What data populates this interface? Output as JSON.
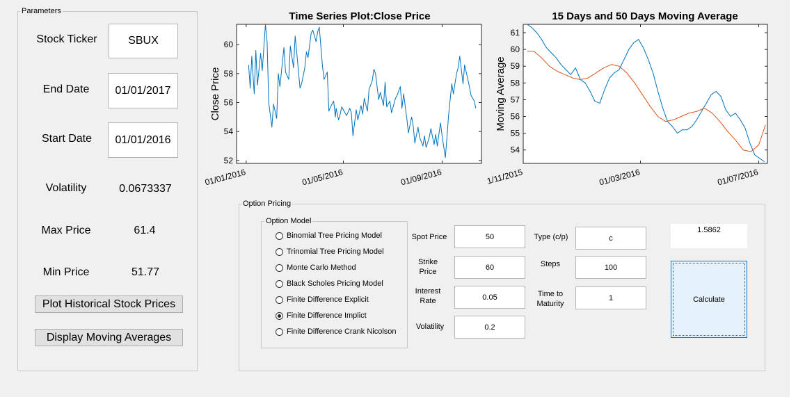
{
  "parameters": {
    "title": "Parameters",
    "stock_ticker_label": "Stock Ticker",
    "stock_ticker_value": "SBUX",
    "end_date_label": "End Date",
    "end_date_value": "01/01/2017",
    "start_date_label": "Start Date",
    "start_date_value": "01/01/2016",
    "volatility_label": "Volatility",
    "volatility_value": "0.0673337",
    "max_price_label": "Max Price",
    "max_price_value": "61.4",
    "min_price_label": "Min Price",
    "min_price_value": "51.77",
    "plot_button": "Plot Historical Stock Prices",
    "ma_button": "Display Moving Averages"
  },
  "option_pricing": {
    "title": "Option Pricing",
    "model_group_title": "Option Model",
    "models": [
      {
        "label": "Binomial Tree Pricing Model",
        "selected": false
      },
      {
        "label": "Trinomial Tree Pricing Model",
        "selected": false
      },
      {
        "label": "Monte Carlo Method",
        "selected": false
      },
      {
        "label": "Black Scholes Pricing Model",
        "selected": false
      },
      {
        "label": "Finite Difference Explicit",
        "selected": false
      },
      {
        "label": "Finite Difference Implict",
        "selected": true
      },
      {
        "label": "Finite Difference Crank Nicolson",
        "selected": false
      }
    ],
    "spot_price_label": "Spot Price",
    "spot_price_value": "50",
    "strike_price_label": "Strike Price",
    "strike_price_value": "60",
    "interest_rate_label": "Interest Rate",
    "interest_rate_value": "0.05",
    "volatility_label": "Volatility",
    "volatility_value": "0.2",
    "type_label": "Type (c/p)",
    "type_value": "c",
    "steps_label": "Steps",
    "steps_value": "100",
    "time_label": "Time to Maturity",
    "time_value": "1",
    "result_value": "1.5862",
    "calculate_button": "Calculate"
  },
  "chart_data": [
    {
      "type": "line",
      "title": "Time Series Plot:Close Price",
      "xlabel": "",
      "ylabel": "Close Price",
      "xlim": [
        "2015-12-20",
        "2016-10-20"
      ],
      "ylim": [
        51.8,
        61.4
      ],
      "xticks": [
        "01/01/2016",
        "01/05/2016",
        "01/09/2016"
      ],
      "yticks": [
        52,
        54,
        56,
        58,
        60
      ],
      "grid": false,
      "series": [
        {
          "color": "#0072bd",
          "x": [
            "2016-01-04",
            "2016-01-06",
            "2016-01-08",
            "2016-01-11",
            "2016-01-13",
            "2016-01-15",
            "2016-01-19",
            "2016-01-21",
            "2016-01-25",
            "2016-01-27",
            "2016-01-29",
            "2016-02-02",
            "2016-02-04",
            "2016-02-08",
            "2016-02-10",
            "2016-02-12",
            "2016-02-17",
            "2016-02-19",
            "2016-02-23",
            "2016-02-25",
            "2016-02-29",
            "2016-03-02",
            "2016-03-04",
            "2016-03-08",
            "2016-03-10",
            "2016-03-14",
            "2016-03-16",
            "2016-03-18",
            "2016-03-22",
            "2016-03-24",
            "2016-03-28",
            "2016-03-30",
            "2016-04-01",
            "2016-04-05",
            "2016-04-07",
            "2016-04-11",
            "2016-04-13",
            "2016-04-15",
            "2016-04-19",
            "2016-04-21",
            "2016-04-22",
            "2016-04-25",
            "2016-04-27",
            "2016-04-29",
            "2016-05-03",
            "2016-05-05",
            "2016-05-09",
            "2016-05-11",
            "2016-05-13",
            "2016-05-17",
            "2016-05-19",
            "2016-05-23",
            "2016-05-25",
            "2016-05-27",
            "2016-05-31",
            "2016-06-02",
            "2016-06-06",
            "2016-06-08",
            "2016-06-10",
            "2016-06-14",
            "2016-06-16",
            "2016-06-20",
            "2016-06-22",
            "2016-06-24",
            "2016-06-28",
            "2016-06-30",
            "2016-07-05",
            "2016-07-07",
            "2016-07-11",
            "2016-07-13",
            "2016-07-15",
            "2016-07-19",
            "2016-07-21",
            "2016-07-25",
            "2016-07-27",
            "2016-07-29",
            "2016-08-02",
            "2016-08-04",
            "2016-08-08",
            "2016-08-10",
            "2016-08-12",
            "2016-08-16",
            "2016-08-18",
            "2016-08-22",
            "2016-08-24",
            "2016-08-26",
            "2016-08-30",
            "2016-09-01",
            "2016-09-05",
            "2016-09-07",
            "2016-09-09",
            "2016-09-13",
            "2016-09-15",
            "2016-09-19",
            "2016-09-21",
            "2016-09-23",
            "2016-09-27",
            "2016-09-29",
            "2016-10-03",
            "2016-10-05",
            "2016-10-07",
            "2016-10-11",
            "2016-10-13"
          ],
          "y": [
            58.6,
            57.0,
            59.2,
            56.6,
            59.6,
            57.2,
            59.4,
            58.2,
            61.4,
            60.2,
            56.0,
            54.3,
            55.9,
            54.9,
            58.0,
            57.1,
            59.8,
            58.1,
            57.6,
            59.9,
            58.4,
            60.6,
            59.4,
            57.0,
            57.3,
            58.4,
            59.5,
            59.1,
            60.8,
            61.0,
            60.2,
            60.9,
            61.2,
            58.5,
            57.6,
            58.1,
            55.4,
            55.7,
            56.1,
            55.0,
            55.6,
            54.8,
            55.2,
            55.7,
            55.3,
            55.1,
            55.6,
            55.3,
            53.7,
            55.5,
            54.8,
            55.8,
            55.2,
            56.3,
            55.4,
            56.9,
            57.5,
            58.3,
            58.0,
            56.2,
            56.7,
            55.8,
            57.4,
            55.7,
            56.1,
            55.3,
            56.3,
            56.5,
            57.1,
            55.6,
            56.6,
            54.9,
            53.9,
            55.0,
            54.4,
            53.2,
            54.3,
            53.6,
            53.0,
            53.7,
            52.9,
            53.6,
            54.2,
            53.1,
            53.8,
            53.0,
            54.6,
            53.7,
            52.2,
            53.6,
            55.1,
            57.3,
            56.6,
            58.0,
            58.4,
            59.2,
            57.3,
            58.6,
            57.6,
            57.1,
            56.5,
            56.1,
            55.6
          ]
        }
      ]
    },
    {
      "type": "line",
      "title": "15 Days and 50 Days Moving Average",
      "xlabel": "",
      "ylabel": "Moving Average",
      "xlim": [
        "2015-11-01",
        "2016-07-10"
      ],
      "ylim": [
        53.2,
        61.5
      ],
      "xticks": [
        "01/11/2015",
        "01/03/2016",
        "01/07/2016"
      ],
      "yticks": [
        54,
        55,
        56,
        57,
        58,
        59,
        60,
        61
      ],
      "grid": false,
      "series": [
        {
          "color": "#0072bd",
          "x": [
            "2015-11-05",
            "2015-11-10",
            "2015-11-15",
            "2015-11-20",
            "2015-11-25",
            "2015-11-30",
            "2015-12-05",
            "2015-12-10",
            "2015-12-15",
            "2015-12-20",
            "2015-12-25",
            "2015-12-30",
            "2016-01-04",
            "2016-01-09",
            "2016-01-14",
            "2016-01-19",
            "2016-01-24",
            "2016-01-29",
            "2016-02-03",
            "2016-02-08",
            "2016-02-13",
            "2016-02-18",
            "2016-02-23",
            "2016-02-28",
            "2016-03-04",
            "2016-03-09",
            "2016-03-14",
            "2016-03-19",
            "2016-03-24",
            "2016-03-29",
            "2016-04-03",
            "2016-04-08",
            "2016-04-13",
            "2016-04-18",
            "2016-04-23",
            "2016-04-28",
            "2016-05-03",
            "2016-05-08",
            "2016-05-13",
            "2016-05-18",
            "2016-05-23",
            "2016-05-28",
            "2016-06-02",
            "2016-06-07",
            "2016-06-12",
            "2016-06-17",
            "2016-06-22",
            "2016-06-27",
            "2016-07-02",
            "2016-07-07"
          ],
          "y": [
            61.5,
            61.3,
            61.0,
            60.6,
            60.1,
            59.8,
            59.5,
            59.1,
            58.8,
            58.5,
            58.9,
            58.2,
            58.0,
            57.5,
            56.9,
            56.8,
            57.6,
            58.3,
            58.6,
            58.8,
            59.4,
            60.0,
            60.4,
            60.6,
            60.1,
            59.4,
            58.6,
            57.5,
            56.5,
            55.7,
            55.4,
            55.0,
            55.2,
            55.2,
            55.4,
            55.8,
            56.3,
            56.8,
            57.3,
            57.5,
            57.2,
            56.4,
            56.0,
            56.2,
            55.8,
            55.3,
            54.4,
            53.7,
            53.5,
            53.3
          ]
        },
        {
          "color": "#d95319",
          "x": [
            "2015-11-05",
            "2015-11-12",
            "2015-11-20",
            "2015-11-28",
            "2015-12-06",
            "2015-12-14",
            "2015-12-22",
            "2015-12-30",
            "2016-01-07",
            "2016-01-15",
            "2016-01-23",
            "2016-01-31",
            "2016-02-08",
            "2016-02-16",
            "2016-02-24",
            "2016-03-03",
            "2016-03-11",
            "2016-03-19",
            "2016-03-27",
            "2016-04-04",
            "2016-04-12",
            "2016-04-20",
            "2016-04-28",
            "2016-05-06",
            "2016-05-14",
            "2016-05-22",
            "2016-05-30",
            "2016-06-07",
            "2016-06-15",
            "2016-06-23",
            "2016-07-01",
            "2016-07-08"
          ],
          "y": [
            59.9,
            59.9,
            59.5,
            59.0,
            58.7,
            58.5,
            58.3,
            58.2,
            58.3,
            58.6,
            58.9,
            59.1,
            59.0,
            58.6,
            58.0,
            57.3,
            56.6,
            56.0,
            55.7,
            55.8,
            56.0,
            56.2,
            56.3,
            56.5,
            56.2,
            55.7,
            55.1,
            54.6,
            54.0,
            53.9,
            54.3,
            55.5
          ]
        }
      ]
    }
  ]
}
